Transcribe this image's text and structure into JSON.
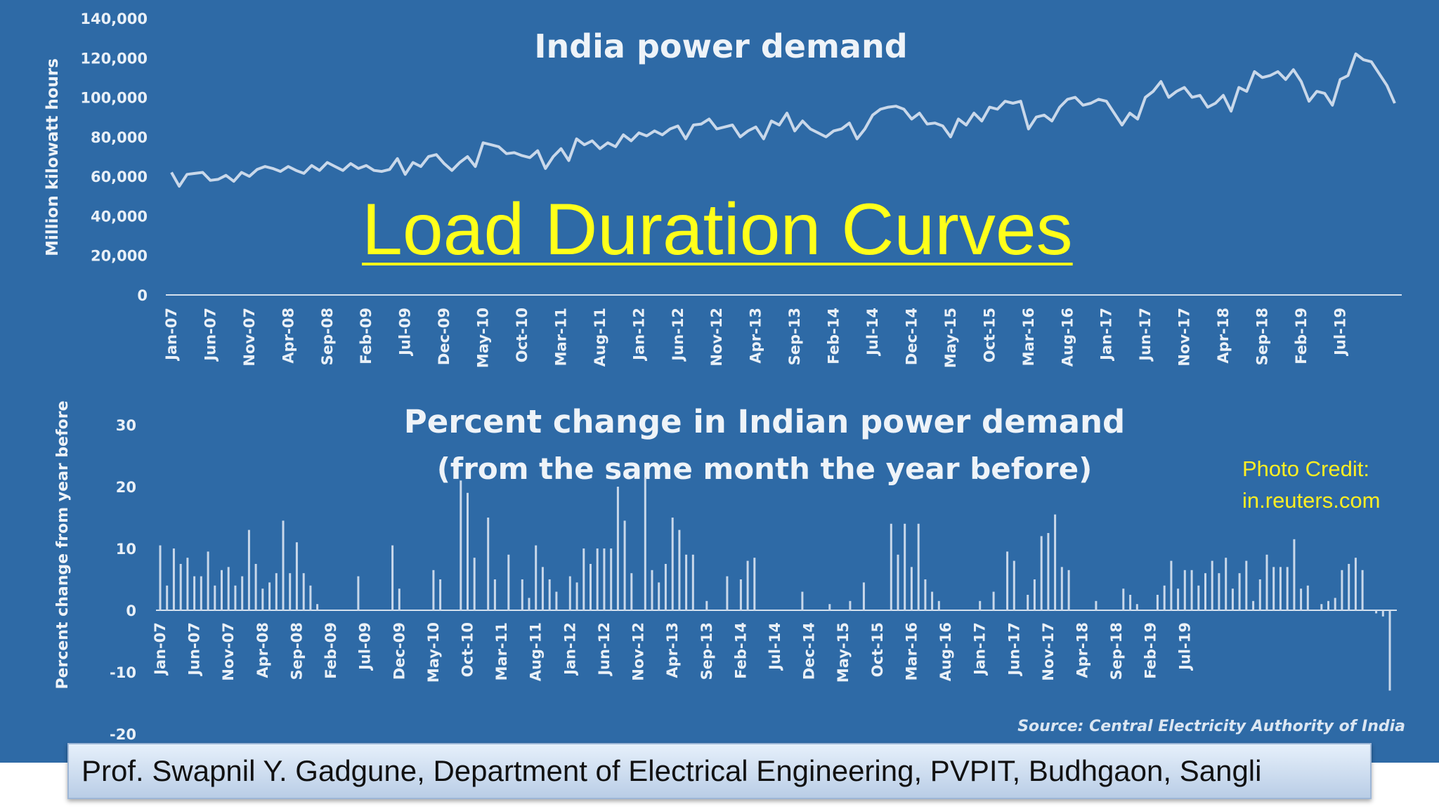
{
  "slide": {
    "title": "Load Duration Curves",
    "photo_credit_line1": "Photo Credit:",
    "photo_credit_line2": "in.reuters.com",
    "source": "Source: Central Electricity Authority of India",
    "footer": "Prof. Swapnil Y. Gadgune, Department of Electrical Engineering, PVPIT, Budhgaon, Sangli"
  },
  "colors": {
    "background": "#2e6aa6",
    "series": "#c9d8ea",
    "title_accent": "#ffff1a"
  },
  "chart_data": [
    {
      "type": "line",
      "title": "India power demand",
      "xlabel": "",
      "ylabel": "Million kilowatt hours",
      "ylim": [
        0,
        140000
      ],
      "yticks": [
        "0",
        "20,000",
        "40,000",
        "60,000",
        "80,000",
        "100,000",
        "120,000",
        "140,000"
      ],
      "xtick_labels": [
        "Jan-07",
        "Jun-07",
        "Nov-07",
        "Apr-08",
        "Sep-08",
        "Feb-09",
        "Jul-09",
        "Dec-09",
        "May-10",
        "Oct-10",
        "Mar-11",
        "Aug-11",
        "Jan-12",
        "Jun-12",
        "Nov-12",
        "Apr-13",
        "Sep-13",
        "Feb-14",
        "Jul-14",
        "Dec-14",
        "May-15",
        "Oct-15",
        "Mar-16",
        "Aug-16",
        "Jan-17",
        "Jun-17",
        "Nov-17",
        "Apr-18",
        "Sep-18",
        "Feb-19",
        "Jul-19"
      ],
      "grid": false,
      "series": [
        {
          "x_start": "Jan-07",
          "x_end": "Oct-19",
          "values": [
            62000,
            55000,
            61000,
            61500,
            62000,
            58000,
            58500,
            60500,
            57500,
            62000,
            60000,
            63500,
            65000,
            64000,
            62500,
            65000,
            63000,
            61500,
            65500,
            63000,
            67000,
            65000,
            63000,
            66500,
            64000,
            65500,
            63000,
            62500,
            63500,
            69000,
            61000,
            67000,
            65000,
            70000,
            71000,
            66500,
            63000,
            67000,
            70000,
            65000,
            77000,
            76000,
            75000,
            71500,
            72000,
            70500,
            69500,
            73000,
            64000,
            70000,
            74000,
            68000,
            79000,
            76000,
            78000,
            74000,
            77000,
            75000,
            81000,
            78000,
            82000,
            80500,
            83000,
            81000,
            84000,
            85500,
            79000,
            86000,
            86500,
            89000,
            84000,
            85000,
            86000,
            80000,
            83000,
            85000,
            79000,
            88000,
            86000,
            92000,
            83000,
            88000,
            84000,
            82000,
            80000,
            83000,
            84000,
            87000,
            79000,
            84000,
            91000,
            94000,
            95000,
            95500,
            94000,
            89000,
            92000,
            86500,
            87000,
            85500,
            80000,
            89000,
            86000,
            92000,
            88000,
            95000,
            94000,
            98000,
            97000,
            98000,
            84000,
            90000,
            91000,
            88000,
            95000,
            99000,
            100000,
            96000,
            97000,
            99000,
            98000,
            92000,
            86000,
            92000,
            89000,
            100000,
            103000,
            108000,
            100000,
            103000,
            105000,
            100000,
            101000,
            95000,
            97000,
            101000,
            93000,
            105000,
            103000,
            113000,
            110000,
            111000,
            113000,
            109000,
            114000,
            108000,
            98000,
            103000,
            102000,
            96000,
            109000,
            111000,
            122000,
            119000,
            118000,
            112000,
            106000,
            97000
          ]
        }
      ]
    },
    {
      "type": "bar",
      "title": "Percent change in Indian power demand",
      "subtitle": "(from the same month the year before)",
      "xlabel": "",
      "ylabel": "Percent change from year before",
      "ylim": [
        -20,
        30
      ],
      "yticks": [
        "-20",
        "-10",
        "0",
        "10",
        "20",
        "30"
      ],
      "xtick_labels": [
        "Jan-07",
        "Jun-07",
        "Nov-07",
        "Apr-08",
        "Sep-08",
        "Feb-09",
        "Jul-09",
        "Dec-09",
        "May-10",
        "Oct-10",
        "Mar-11",
        "Aug-11",
        "Jan-12",
        "Jun-12",
        "Nov-12",
        "Apr-13",
        "Sep-13",
        "Feb-14",
        "Jul-14",
        "Dec-14",
        "May-15",
        "Oct-15",
        "Mar-16",
        "Aug-16",
        "Jan-17",
        "Jun-17",
        "Nov-17",
        "Apr-18",
        "Sep-18",
        "Feb-19",
        "Jul-19"
      ],
      "grid": false,
      "series": [
        {
          "x_start": "Jan-07",
          "x_end": "Oct-19",
          "values": [
            10.5,
            4,
            10,
            7.5,
            8.5,
            5.5,
            5.5,
            9.5,
            4,
            6.5,
            7,
            4,
            5.5,
            13,
            7.5,
            3.5,
            4.5,
            6,
            14.5,
            6,
            11,
            6,
            4,
            1,
            0,
            0,
            0,
            0,
            0,
            5.5,
            0,
            0,
            0,
            0,
            10.5,
            3.5,
            0,
            0,
            0,
            0,
            6.5,
            5,
            0,
            0,
            21,
            19,
            8.5,
            0,
            15,
            5,
            0,
            9,
            0,
            5,
            2,
            10.5,
            7,
            5,
            3,
            0,
            5.5,
            4.5,
            10,
            7.5,
            10,
            10,
            10,
            20,
            14.5,
            6,
            0,
            21.5,
            6.5,
            4.5,
            7.5,
            15,
            13,
            9,
            9,
            0,
            1.5,
            0,
            0,
            5.5,
            0,
            5,
            8,
            8.5,
            0,
            0,
            0,
            0,
            0,
            0,
            3,
            0,
            0,
            0,
            1,
            0,
            0,
            1.5,
            0,
            4.5,
            0,
            0,
            0,
            14,
            9,
            14,
            7,
            14,
            5,
            3,
            1.5,
            0,
            0,
            0,
            0,
            0,
            1.5,
            0,
            3,
            0,
            9.5,
            8,
            0,
            2.5,
            5,
            12,
            12.5,
            15.5,
            7,
            6.5,
            0,
            0,
            0,
            1.5,
            0,
            0,
            0,
            3.5,
            2.5,
            1,
            0,
            0,
            2.5,
            4,
            8,
            3.5,
            6.5,
            6.5,
            4,
            6,
            8,
            6,
            8.5,
            3.5,
            6,
            8,
            1.5,
            5,
            9,
            7,
            7,
            7,
            11.5,
            3.5,
            4,
            0,
            1,
            1.5,
            2,
            6.5,
            7.5,
            8.5,
            6.5,
            0,
            -0.5,
            -1,
            -13
          ]
        }
      ]
    }
  ]
}
